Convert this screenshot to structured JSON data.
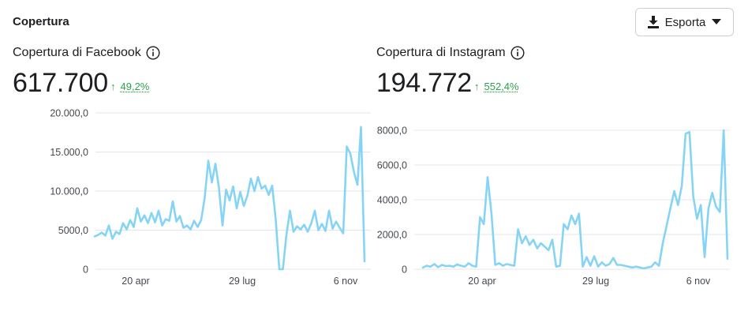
{
  "header": {
    "title": "Copertura",
    "export_label": "Esporta",
    "export_icon": "download-icon",
    "dropdown_icon": "caret-down-icon"
  },
  "colors": {
    "series": "#86d4f5",
    "positive": "#31a24c",
    "grid": "#e4e6eb"
  },
  "panels": [
    {
      "title": "Copertura di Facebook",
      "value": "617.700",
      "delta_arrow": "↑",
      "delta": "49,2%"
    },
    {
      "title": "Copertura di Instagram",
      "value": "194.772",
      "delta_arrow": "↑",
      "delta": "552,4%"
    }
  ],
  "chart_data": [
    {
      "type": "line",
      "ylim": [
        0,
        20000
      ],
      "yticks": [
        0,
        5000,
        10000,
        15000,
        20000
      ],
      "ytick_labels": [
        "0",
        "5000,0",
        "10.000,0",
        "15.000,0",
        "20.000,0"
      ],
      "xticks": [
        "20 apr",
        "29 lug",
        "6 nov"
      ],
      "grid": true,
      "series": [
        {
          "values": [
            4200,
            4400,
            4700,
            4300,
            5600,
            3900,
            4800,
            4500,
            5900,
            5100,
            6300,
            5400,
            7800,
            6100,
            6900,
            5900,
            7200,
            6000,
            7500,
            5600,
            6400,
            6200,
            8700,
            6100,
            6800,
            5300,
            5600,
            5100,
            6200,
            5400,
            6300,
            9200,
            13900,
            11100,
            13500,
            10400,
            5600,
            10200,
            8800,
            10600,
            7800,
            9900,
            8100,
            9400,
            11600,
            10000,
            11800,
            10300,
            10700,
            9500,
            10700,
            6300,
            0,
            0,
            4400,
            7500,
            4800,
            5500,
            5100,
            5700,
            4800,
            5900,
            7500,
            5000,
            5800,
            4900,
            7500,
            5200,
            6100,
            5300,
            4600,
            15700,
            14800,
            12500,
            10800,
            18200,
            1000
          ]
        }
      ]
    },
    {
      "type": "line",
      "ylim": [
        0,
        8000
      ],
      "yticks": [
        0,
        2000,
        4000,
        6000,
        8000
      ],
      "ytick_labels": [
        "0",
        "2000,0",
        "4000,0",
        "6000,0",
        "8000,0"
      ],
      "xticks": [
        "20 apr",
        "29 lug",
        "6 nov"
      ],
      "grid": true,
      "series": [
        {
          "values": [
            100,
            200,
            150,
            300,
            120,
            250,
            180,
            200,
            150,
            280,
            200,
            150,
            350,
            200,
            150,
            3000,
            2600,
            5300,
            3200,
            250,
            350,
            200,
            300,
            250,
            200,
            2300,
            1500,
            1900,
            1400,
            1700,
            1200,
            1500,
            1300,
            1100,
            1700,
            150,
            200,
            2600,
            2300,
            3100,
            2600,
            3200,
            150,
            700,
            200,
            750,
            150,
            400,
            200,
            300,
            650,
            250,
            250,
            200,
            150,
            100,
            150,
            100,
            50,
            100,
            150,
            400,
            200,
            1500,
            2500,
            3500,
            4500,
            3700,
            4800,
            7800,
            7900,
            4200,
            2900,
            3700,
            700,
            3500,
            4400,
            3600,
            3300,
            8000,
            600
          ]
        }
      ]
    }
  ]
}
